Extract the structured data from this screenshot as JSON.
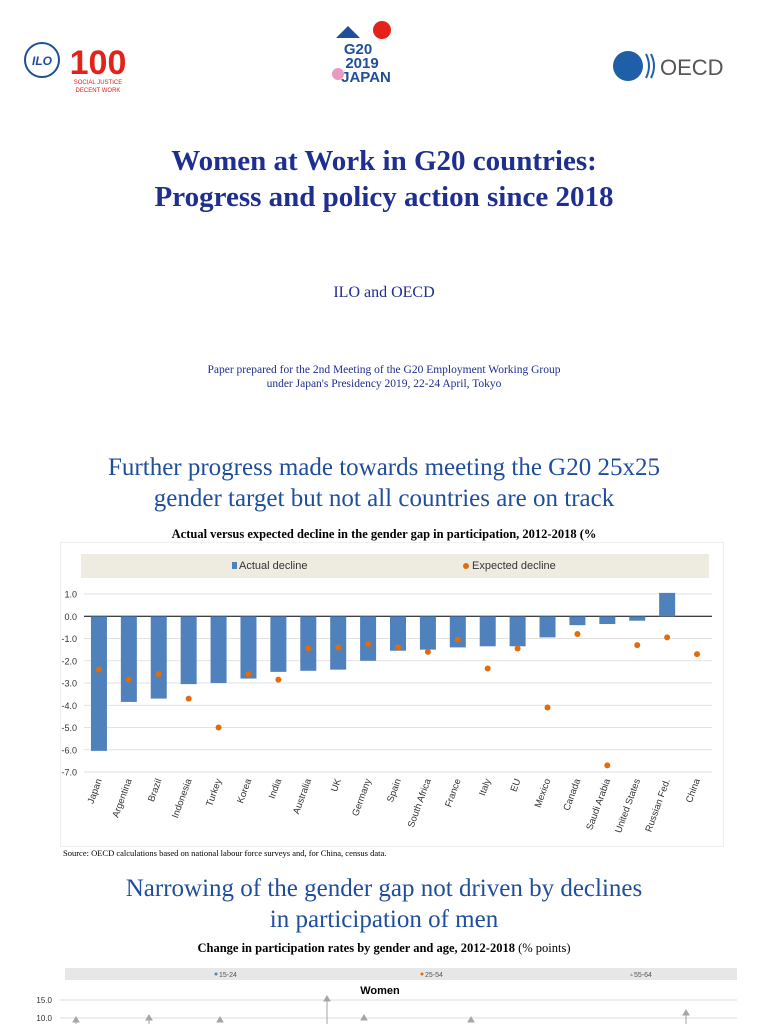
{
  "logos": {
    "ilo": {
      "text": "ILO",
      "centenary": "100",
      "tagline": [
        "SOCIAL JUSTICE",
        "DECENT WORK"
      ]
    },
    "g20": {
      "lines": [
        "G20",
        "2019",
        "JAPAN"
      ]
    },
    "oecd": {
      "text": "OECD"
    }
  },
  "title": [
    "Women at Work in G20 countries:",
    "Progress and policy action since 2018"
  ],
  "authors": "ILO and OECD",
  "paper_note": [
    "Paper prepared for the 2nd Meeting of the G20 Employment Working Group",
    "under Japan's Presidency 2019, 22-24 April, Tokyo"
  ],
  "section1": {
    "heading": [
      "Further progress made towards meeting the G20 25x25",
      "gender target but not all countries are on track"
    ]
  },
  "section2": {
    "heading": [
      "Narrowing of the gender gap not driven by declines",
      "in participation of men"
    ]
  },
  "source": "Source: OECD calculations based on national labour force surveys and, for China, census data.",
  "chart_data": [
    {
      "type": "bar",
      "title": "Actual versus expected decline in the gender gap in participation, 2012-2018 (%",
      "categories": [
        "Japan",
        "Argentina",
        "Brazil",
        "Indonesia",
        "Turkey",
        "Korea",
        "India",
        "Australia",
        "UK",
        "Germany",
        "Spain",
        "South Africa",
        "France",
        "Italy",
        "EU",
        "Mexico",
        "Canada",
        "Saudi Arabia",
        "United States",
        "Russian Fed.",
        "China"
      ],
      "series": [
        {
          "name": "Actual decline",
          "type": "bar",
          "color": "#4f81bd",
          "values": [
            -6.05,
            -3.85,
            -3.7,
            -3.05,
            -3.0,
            -2.8,
            -2.5,
            -2.45,
            -2.4,
            -2.0,
            -1.55,
            -1.5,
            -1.4,
            -1.35,
            -1.35,
            -0.95,
            -0.4,
            -0.35,
            -0.2,
            1.05,
            null
          ]
        },
        {
          "name": "Expected decline",
          "type": "scatter",
          "color": "#e36c0a",
          "values": [
            -2.4,
            -2.85,
            -2.6,
            -3.7,
            -5.0,
            -2.6,
            -2.85,
            -1.45,
            -1.4,
            -1.25,
            -1.4,
            -1.6,
            -1.05,
            -2.35,
            -1.45,
            -4.1,
            -0.8,
            -6.7,
            -1.3,
            -0.95,
            -1.7
          ]
        }
      ],
      "ylim": [
        -7,
        1
      ],
      "yticks": [
        "1.0",
        "0.0",
        "-1.0",
        "-2.0",
        "-3.0",
        "-4.0",
        "-5.0",
        "-6.0",
        "-7.0"
      ],
      "grid": true,
      "legend": "top"
    },
    {
      "type": "scatter",
      "title": "Change in participation rates by gender and age, 2012-2018",
      "title_unit": "(% points)",
      "panel": "Women",
      "legend": [
        "15-24",
        "25-54",
        "55-64"
      ],
      "colors": [
        "#4f81bd",
        "#e36c0a",
        "#a6a6a6"
      ],
      "yticks": [
        "15.0",
        "10.0"
      ]
    }
  ]
}
